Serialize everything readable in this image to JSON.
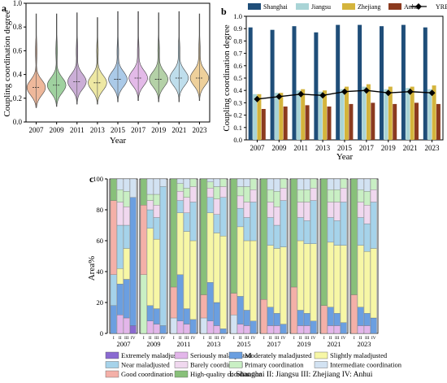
{
  "panels": {
    "a": {
      "letter": "a",
      "ylabel": "Coupling coordination degree",
      "xlabel": "Year",
      "years": [
        "2007",
        "2009",
        "2011",
        "2013",
        "2015",
        "2017",
        "2019",
        "2021",
        "2023"
      ],
      "yticks": [
        "0.0",
        "0.2",
        "0.4",
        "0.6",
        "0.8",
        "1.0"
      ],
      "colors": [
        "#e8a07a",
        "#7fc17f",
        "#b993c9",
        "#e8e084",
        "#8fb8e0",
        "#d9a3e0",
        "#9bc28a",
        "#a9d3e6",
        "#e8c07a"
      ]
    },
    "b": {
      "letter": "b",
      "ylabel": "Coupling coordination degree",
      "xlabel": "Year",
      "yticks": [
        "0.0",
        "0.1",
        "0.2",
        "0.3",
        "0.4",
        "0.5",
        "0.6",
        "0.7",
        "0.8",
        "0.9",
        "1.0"
      ],
      "legend": [
        "Shanghai",
        "Jiangsu",
        "Zhejiang",
        "Anhui",
        "YRB"
      ],
      "colors": {
        "Shanghai": "#1f4e79",
        "Jiangsu": "#a9d4d6",
        "Zhejiang": "#d4b43c",
        "Anhui": "#8b3a1f",
        "YRB": "#000000"
      }
    },
    "c": {
      "letter": "c",
      "ylabel": "Area%",
      "yticks": [
        "0",
        "20",
        "40",
        "60",
        "80",
        "100"
      ],
      "group_labels": [
        "I",
        "II",
        "III",
        "IV"
      ],
      "years": [
        "2007",
        "2009",
        "2011",
        "2013",
        "2015",
        "2017",
        "2019",
        "2021",
        "2023"
      ],
      "legend": [
        {
          "label": "Extremely maladjusted",
          "color": "#8a6ad1"
        },
        {
          "label": "Seriously maladjusted",
          "color": "#e3b6ea"
        },
        {
          "label": "Moderately maladjusted",
          "color": "#6b9fe0"
        },
        {
          "label": "Slightly maladjusted",
          "color": "#f7f7a6"
        },
        {
          "label": "Near maladjusted",
          "color": "#a6d3ea"
        },
        {
          "label": "Barely coordinated",
          "color": "#f0d8ef"
        },
        {
          "label": "Primary coordination",
          "color": "#c9efc4"
        },
        {
          "label": "Intermediate coordination",
          "color": "#d2e2f2"
        },
        {
          "label": "Good coordination",
          "color": "#f4b0a8"
        },
        {
          "label": "High-quality coordination",
          "color": "#88c07a"
        }
      ],
      "region_note": "I: Shanghai  II: Jiangsu  III: Zhejiang  IV: Anhui"
    }
  },
  "chart_data": [
    {
      "type": "violin",
      "title": "",
      "xlabel": "Year",
      "ylabel": "Coupling coordination degree",
      "ylim": [
        0,
        1.0
      ],
      "categories": [
        "2007",
        "2009",
        "2011",
        "2013",
        "2015",
        "2017",
        "2019",
        "2021",
        "2023"
      ],
      "medians": [
        0.29,
        0.31,
        0.34,
        0.33,
        0.36,
        0.37,
        0.36,
        0.37,
        0.37
      ],
      "min": [
        0.12,
        0.13,
        0.15,
        0.15,
        0.17,
        0.18,
        0.17,
        0.17,
        0.18
      ],
      "max": [
        0.91,
        0.91,
        0.92,
        0.88,
        0.93,
        0.93,
        0.92,
        0.93,
        0.91
      ]
    },
    {
      "type": "bar",
      "title": "",
      "xlabel": "Year",
      "ylabel": "Coupling coordination degree",
      "ylim": [
        0,
        1.0
      ],
      "categories": [
        "2007",
        "2009",
        "2011",
        "2013",
        "2015",
        "2017",
        "2019",
        "2021",
        "2023"
      ],
      "series": [
        {
          "name": "Shanghai",
          "values": [
            0.91,
            0.89,
            0.92,
            0.87,
            0.93,
            0.93,
            0.92,
            0.93,
            0.91
          ]
        },
        {
          "name": "Jiangsu",
          "values": [
            0.37,
            0.38,
            0.4,
            0.39,
            0.41,
            0.43,
            0.41,
            0.42,
            0.41
          ]
        },
        {
          "name": "Zhejiang",
          "values": [
            0.37,
            0.38,
            0.41,
            0.4,
            0.43,
            0.45,
            0.43,
            0.43,
            0.44
          ]
        },
        {
          "name": "Anhui",
          "values": [
            0.25,
            0.27,
            0.28,
            0.27,
            0.29,
            0.3,
            0.29,
            0.3,
            0.29
          ]
        }
      ],
      "line": {
        "name": "YRB",
        "values": [
          0.33,
          0.35,
          0.37,
          0.36,
          0.39,
          0.4,
          0.38,
          0.39,
          0.38
        ]
      }
    },
    {
      "type": "stacked-bar",
      "title": "",
      "ylabel": "Area%",
      "ylim": [
        0,
        100
      ],
      "categories": [
        "2007",
        "2009",
        "2011",
        "2013",
        "2015",
        "2017",
        "2019",
        "2021",
        "2023"
      ],
      "groups": [
        "I",
        "II",
        "III",
        "IV"
      ],
      "stack_order": [
        "Extremely maladjusted",
        "Seriously maladjusted",
        "Moderately maladjusted",
        "Slightly maladjusted",
        "Near maladjusted",
        "Barely coordinated",
        "Primary coordination",
        "Intermediate coordination",
        "Good coordination",
        "High-quality coordination"
      ],
      "values": [
        [
          [
            0,
            0,
            18,
            0,
            20,
            0,
            0,
            0,
            48,
            14
          ],
          [
            0,
            12,
            20,
            10,
            28,
            15,
            8,
            7,
            0,
            0
          ],
          [
            0,
            10,
            25,
            20,
            15,
            12,
            10,
            8,
            0,
            0
          ],
          [
            5,
            0,
            83,
            0,
            0,
            0,
            0,
            12,
            0,
            0
          ]
        ],
        [
          [
            0,
            0,
            0,
            0,
            0,
            0,
            38,
            0,
            45,
            17
          ],
          [
            0,
            8,
            10,
            50,
            12,
            6,
            4,
            10,
            0,
            0
          ],
          [
            0,
            6,
            10,
            45,
            14,
            8,
            7,
            10,
            0,
            0
          ],
          [
            0,
            0,
            5,
            0,
            90,
            0,
            0,
            5,
            0,
            0
          ]
        ],
        [
          [
            0,
            0,
            0,
            0,
            0,
            0,
            0,
            10,
            20,
            70
          ],
          [
            0,
            8,
            30,
            40,
            8,
            6,
            5,
            3,
            0,
            0
          ],
          [
            0,
            6,
            10,
            50,
            12,
            10,
            6,
            6,
            0,
            0
          ],
          [
            0,
            0,
            9,
            51,
            25,
            10,
            5,
            0,
            0,
            0
          ]
        ],
        [
          [
            0,
            0,
            0,
            0,
            0,
            0,
            0,
            10,
            15,
            75
          ],
          [
            0,
            8,
            25,
            45,
            10,
            6,
            4,
            2,
            0,
            0
          ],
          [
            0,
            5,
            15,
            45,
            12,
            10,
            8,
            5,
            0,
            0
          ],
          [
            0,
            0,
            3,
            60,
            25,
            7,
            5,
            0,
            0,
            0
          ]
        ],
        [
          [
            0,
            0,
            0,
            0,
            0,
            0,
            0,
            12,
            14,
            74
          ],
          [
            0,
            6,
            18,
            45,
            12,
            8,
            6,
            5,
            0,
            0
          ],
          [
            0,
            5,
            10,
            45,
            15,
            10,
            10,
            5,
            0,
            0
          ],
          [
            0,
            0,
            8,
            52,
            25,
            8,
            7,
            0,
            0,
            0
          ]
        ],
        [
          [
            0,
            0,
            0,
            0,
            0,
            0,
            0,
            0,
            22,
            78
          ],
          [
            0,
            5,
            12,
            40,
            18,
            10,
            8,
            7,
            0,
            0
          ],
          [
            0,
            5,
            8,
            42,
            15,
            12,
            10,
            8,
            0,
            0
          ],
          [
            0,
            0,
            6,
            50,
            30,
            8,
            6,
            0,
            0,
            0
          ]
        ],
        [
          [
            0,
            0,
            0,
            0,
            0,
            0,
            0,
            0,
            30,
            70
          ],
          [
            0,
            5,
            10,
            45,
            15,
            10,
            8,
            7,
            0,
            0
          ],
          [
            0,
            5,
            8,
            45,
            15,
            12,
            8,
            7,
            0,
            0
          ],
          [
            0,
            0,
            8,
            50,
            28,
            8,
            6,
            0,
            0,
            0
          ]
        ],
        [
          [
            0,
            0,
            0,
            0,
            0,
            0,
            0,
            0,
            18,
            82
          ],
          [
            0,
            5,
            12,
            42,
            16,
            10,
            8,
            7,
            0,
            0
          ],
          [
            0,
            5,
            8,
            44,
            16,
            12,
            8,
            7,
            0,
            0
          ],
          [
            0,
            0,
            7,
            50,
            28,
            9,
            6,
            0,
            0,
            0
          ]
        ],
        [
          [
            0,
            0,
            0,
            0,
            0,
            0,
            0,
            0,
            25,
            75
          ],
          [
            0,
            5,
            12,
            40,
            18,
            10,
            8,
            7,
            0,
            0
          ],
          [
            0,
            5,
            8,
            40,
            18,
            12,
            9,
            8,
            0,
            0
          ],
          [
            0,
            0,
            10,
            45,
            30,
            8,
            7,
            0,
            0,
            0
          ]
        ]
      ]
    }
  ]
}
